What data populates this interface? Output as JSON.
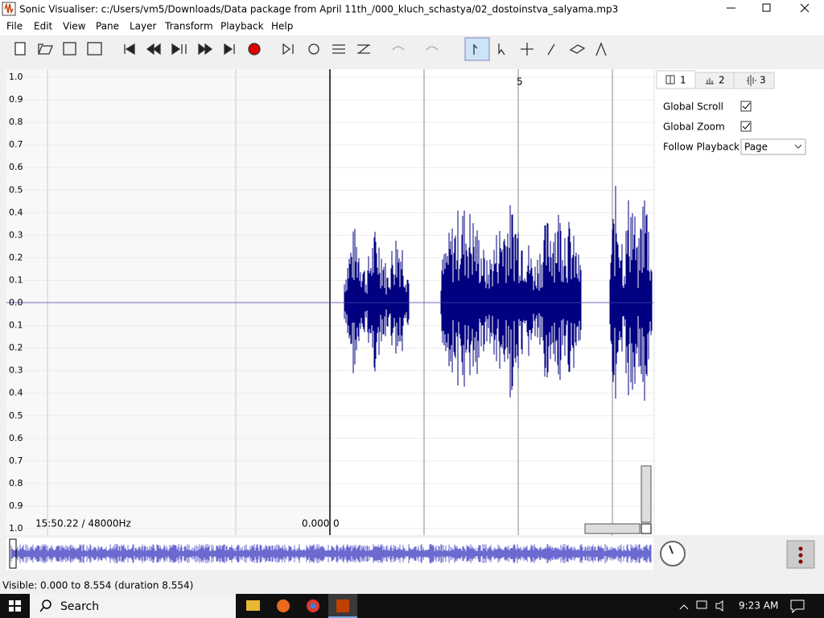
{
  "window": {
    "title": "Sonic Visualiser: c:/Users/vm5/Downloads/Data package from April 11th_/000_kluch_schastya/02_dostoinstva_salyama.mp3"
  },
  "menu": [
    "File",
    "Edit",
    "View",
    "Pane",
    "Layer",
    "Transform",
    "Playback",
    "Help"
  ],
  "pane": {
    "scale_labels": [
      "1.0",
      "0.9",
      "0.8",
      "0.7",
      "0.6",
      "0.5",
      "0.4",
      "0.3",
      "0.2",
      "0.1",
      "0.0",
      "0.1",
      "0.2",
      "0.3",
      "0.4",
      "0.5",
      "0.6",
      "0.7",
      "0.8",
      "0.9",
      "1.0"
    ],
    "time_marker": "5",
    "sample_info": "15:50.22 / 48000Hz",
    "left_value": "0.000",
    "right_value": "0"
  },
  "properties": {
    "tabs": [
      "1",
      "2",
      "3"
    ],
    "global_scroll": "Global Scroll",
    "global_zoom": "Global Zoom",
    "follow_playback": "Follow Playback",
    "follow_playback_value": "Page"
  },
  "status": "Visible: 0.000 to 8.554 (duration 8.554)",
  "taskbar": {
    "search": "Search",
    "clock": "9:23 AM"
  }
}
